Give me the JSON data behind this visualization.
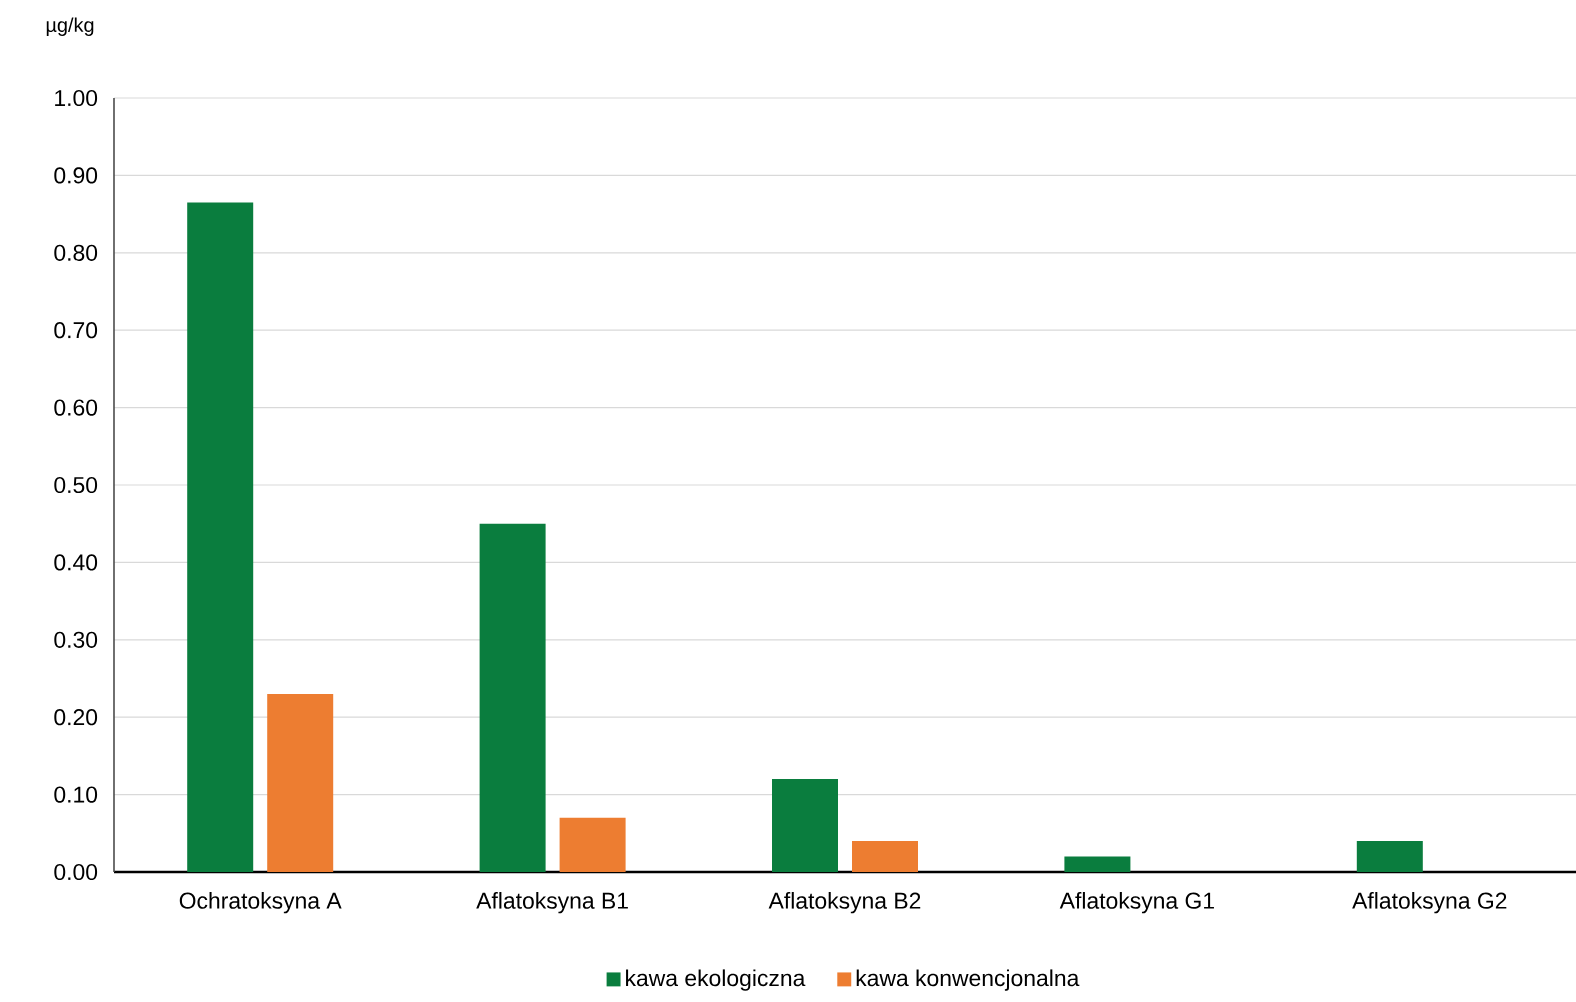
{
  "chart_data": {
    "type": "bar",
    "ylabel": "µg/kg",
    "categories": [
      "Ochratoksyna A",
      "Aflatoksyna B1",
      "Aflatoksyna B2",
      "Aflatoksyna G1",
      "Aflatoksyna G2"
    ],
    "series": [
      {
        "name": "kawa ekologiczna",
        "color": "#0a7d3e",
        "values": [
          0.865,
          0.45,
          0.12,
          0.02,
          0.04
        ]
      },
      {
        "name": "kawa konwencjonalna",
        "color": "#ed7d31",
        "values": [
          0.23,
          0.07,
          0.04,
          null,
          null
        ]
      }
    ],
    "ylim": [
      0,
      1
    ],
    "yticks": [
      {
        "value": 0,
        "label": "0.00"
      },
      {
        "value": 0.1,
        "label": "0.10"
      },
      {
        "value": 0.2,
        "label": "0.20"
      },
      {
        "value": 0.3,
        "label": "0.30"
      },
      {
        "value": 0.4,
        "label": "0.40"
      },
      {
        "value": 0.5,
        "label": "0.50"
      },
      {
        "value": 0.6,
        "label": "0.60"
      },
      {
        "value": 0.7,
        "label": "0.70"
      },
      {
        "value": 0.8,
        "label": "0.80"
      },
      {
        "value": 0.9,
        "label": "0.90"
      },
      {
        "value": 1,
        "label": "1.00"
      }
    ],
    "grid": "y",
    "legend": "bottom"
  }
}
